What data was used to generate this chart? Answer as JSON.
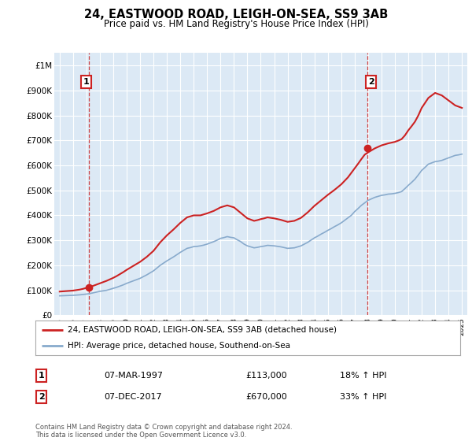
{
  "title": "24, EASTWOOD ROAD, LEIGH-ON-SEA, SS9 3AB",
  "subtitle": "Price paid vs. HM Land Registry's House Price Index (HPI)",
  "plot_bg_color": "#dce9f5",
  "red_line_color": "#cc2222",
  "blue_line_color": "#88aacc",
  "marker_color": "#cc2222",
  "vline_color": "#cc2222",
  "ylim": [
    0,
    1050000
  ],
  "yticks": [
    0,
    100000,
    200000,
    300000,
    400000,
    500000,
    600000,
    700000,
    800000,
    900000,
    1000000
  ],
  "ytick_labels": [
    "£0",
    "£100K",
    "£200K",
    "£300K",
    "£400K",
    "£500K",
    "£600K",
    "£700K",
    "£800K",
    "£900K",
    "£1M"
  ],
  "sale1_year": 1997.18,
  "sale1_price": 113000,
  "sale2_year": 2017.92,
  "sale2_price": 670000,
  "legend_entry1": "24, EASTWOOD ROAD, LEIGH-ON-SEA, SS9 3AB (detached house)",
  "legend_entry2": "HPI: Average price, detached house, Southend-on-Sea",
  "annotation1_label": "1",
  "annotation2_label": "2",
  "table_row1": [
    "1",
    "07-MAR-1997",
    "£113,000",
    "18% ↑ HPI"
  ],
  "table_row2": [
    "2",
    "07-DEC-2017",
    "£670,000",
    "33% ↑ HPI"
  ],
  "footer": "Contains HM Land Registry data © Crown copyright and database right 2024.\nThis data is licensed under the Open Government Licence v3.0.",
  "hpi_years": [
    1995,
    1995.25,
    1995.5,
    1995.75,
    1996,
    1996.25,
    1996.5,
    1996.75,
    1997,
    1997.25,
    1997.5,
    1997.75,
    1998,
    1998.25,
    1998.5,
    1998.75,
    1999,
    1999.25,
    1999.5,
    1999.75,
    2000,
    2000.25,
    2000.5,
    2000.75,
    2001,
    2001.25,
    2001.5,
    2001.75,
    2002,
    2002.25,
    2002.5,
    2002.75,
    2003,
    2003.25,
    2003.5,
    2003.75,
    2004,
    2004.25,
    2004.5,
    2004.75,
    2005,
    2005.25,
    2005.5,
    2005.75,
    2006,
    2006.25,
    2006.5,
    2006.75,
    2007,
    2007.25,
    2007.5,
    2007.75,
    2008,
    2008.25,
    2008.5,
    2008.75,
    2009,
    2009.25,
    2009.5,
    2009.75,
    2010,
    2010.25,
    2010.5,
    2010.75,
    2011,
    2011.25,
    2011.5,
    2011.75,
    2012,
    2012.25,
    2012.5,
    2012.75,
    2013,
    2013.25,
    2013.5,
    2013.75,
    2014,
    2014.25,
    2014.5,
    2014.75,
    2015,
    2015.25,
    2015.5,
    2015.75,
    2016,
    2016.25,
    2016.5,
    2016.75,
    2017,
    2017.25,
    2017.5,
    2017.75,
    2018,
    2018.25,
    2018.5,
    2018.75,
    2019,
    2019.25,
    2019.5,
    2019.75,
    2020,
    2020.25,
    2020.5,
    2020.75,
    2021,
    2021.25,
    2021.5,
    2021.75,
    2022,
    2022.25,
    2022.5,
    2022.75,
    2023,
    2023.25,
    2023.5,
    2023.75,
    2024,
    2024.25,
    2024.5,
    2024.75,
    2025
  ],
  "hpi_values": [
    78000,
    78500,
    79000,
    79500,
    80000,
    81000,
    82000,
    83500,
    85000,
    87000,
    90000,
    93000,
    96000,
    98000,
    100000,
    104000,
    108000,
    112000,
    117000,
    122000,
    128000,
    133000,
    138000,
    143000,
    148000,
    155000,
    162000,
    170000,
    178000,
    189000,
    200000,
    209000,
    218000,
    226000,
    234000,
    243000,
    252000,
    260000,
    268000,
    271000,
    275000,
    276000,
    278000,
    281000,
    285000,
    290000,
    295000,
    301000,
    308000,
    311000,
    315000,
    312000,
    310000,
    302000,
    295000,
    285000,
    278000,
    274000,
    270000,
    272000,
    275000,
    277000,
    280000,
    279000,
    278000,
    276000,
    274000,
    271000,
    268000,
    269000,
    270000,
    274000,
    278000,
    285000,
    292000,
    301000,
    310000,
    317000,
    325000,
    332000,
    340000,
    347000,
    355000,
    362000,
    370000,
    380000,
    390000,
    400000,
    415000,
    427000,
    440000,
    450000,
    460000,
    466000,
    472000,
    476000,
    480000,
    482000,
    485000,
    486000,
    488000,
    491000,
    495000,
    507000,
    520000,
    532000,
    545000,
    562000,
    580000,
    592000,
    605000,
    610000,
    615000,
    617000,
    620000,
    625000,
    630000,
    635000,
    640000,
    642000,
    645000
  ],
  "red_years": [
    1995,
    1995.25,
    1995.5,
    1995.75,
    1996,
    1996.25,
    1996.5,
    1996.75,
    1997,
    1997.25,
    1997.5,
    1997.75,
    1998,
    1998.25,
    1998.5,
    1998.75,
    1999,
    1999.25,
    1999.5,
    1999.75,
    2000,
    2000.25,
    2000.5,
    2000.75,
    2001,
    2001.25,
    2001.5,
    2001.75,
    2002,
    2002.25,
    2002.5,
    2002.75,
    2003,
    2003.25,
    2003.5,
    2003.75,
    2004,
    2004.25,
    2004.5,
    2004.75,
    2005,
    2005.25,
    2005.5,
    2005.75,
    2006,
    2006.25,
    2006.5,
    2006.75,
    2007,
    2007.25,
    2007.5,
    2007.75,
    2008,
    2008.25,
    2008.5,
    2008.75,
    2009,
    2009.25,
    2009.5,
    2009.75,
    2010,
    2010.25,
    2010.5,
    2010.75,
    2011,
    2011.25,
    2011.5,
    2011.75,
    2012,
    2012.25,
    2012.5,
    2012.75,
    2013,
    2013.25,
    2013.5,
    2013.75,
    2014,
    2014.25,
    2014.5,
    2014.75,
    2015,
    2015.25,
    2015.5,
    2015.75,
    2016,
    2016.25,
    2016.5,
    2016.75,
    2017,
    2017.25,
    2017.5,
    2017.75,
    2018,
    2018.25,
    2018.5,
    2018.75,
    2019,
    2019.25,
    2019.5,
    2019.75,
    2020,
    2020.25,
    2020.5,
    2020.75,
    2021,
    2021.25,
    2021.5,
    2021.75,
    2022,
    2022.25,
    2022.5,
    2022.75,
    2023,
    2023.25,
    2023.5,
    2023.75,
    2024,
    2024.25,
    2024.5,
    2024.75,
    2025
  ],
  "red_values": [
    95000,
    96000,
    97000,
    98000,
    99000,
    101000,
    103000,
    106000,
    110000,
    114000,
    118000,
    123000,
    128000,
    133000,
    138000,
    144000,
    150000,
    157000,
    165000,
    173000,
    182000,
    190000,
    198000,
    206000,
    214000,
    224000,
    234000,
    246000,
    258000,
    275000,
    292000,
    306000,
    320000,
    332000,
    344000,
    357000,
    370000,
    381000,
    392000,
    396000,
    400000,
    400000,
    400000,
    404000,
    408000,
    413000,
    418000,
    425000,
    432000,
    436000,
    440000,
    436000,
    432000,
    421000,
    410000,
    399000,
    388000,
    383000,
    378000,
    381000,
    385000,
    388000,
    392000,
    390000,
    388000,
    385000,
    382000,
    378000,
    374000,
    376000,
    378000,
    384000,
    390000,
    401000,
    412000,
    425000,
    438000,
    449000,
    460000,
    471000,
    482000,
    492000,
    502000,
    513000,
    524000,
    538000,
    552000,
    570000,
    588000,
    606000,
    625000,
    643000,
    652000,
    660000,
    668000,
    674000,
    680000,
    684000,
    688000,
    691000,
    694000,
    699000,
    705000,
    720000,
    740000,
    757000,
    775000,
    800000,
    830000,
    850000,
    870000,
    880000,
    890000,
    885000,
    880000,
    870000,
    860000,
    850000,
    840000,
    835000,
    830000
  ]
}
